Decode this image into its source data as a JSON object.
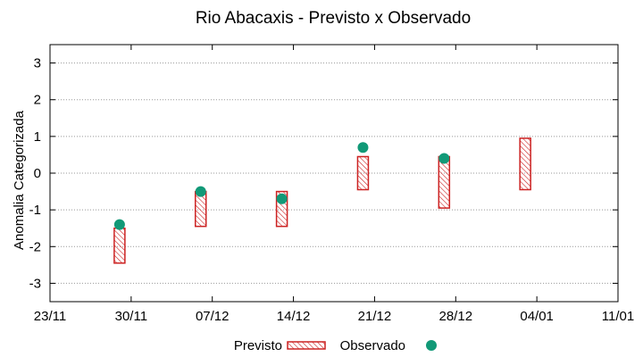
{
  "chart_data": {
    "type": "range-bar-scatter",
    "title": "Rio Abacaxis - Previsto x Observado",
    "xlabel": "",
    "ylabel": "Anomalia Categorizada",
    "x_tick_labels": [
      "23/11",
      "30/11",
      "07/12",
      "14/12",
      "21/12",
      "28/12",
      "04/01",
      "11/01"
    ],
    "x_ticks": [
      "2023-11-23",
      "2023-11-30",
      "2023-12-07",
      "2023-12-14",
      "2023-12-21",
      "2023-12-28",
      "2024-01-04",
      "2024-01-11"
    ],
    "xlim": [
      "2023-11-23",
      "2024-01-11"
    ],
    "y_ticks": [
      -3,
      -2,
      -1,
      0,
      1,
      2,
      3
    ],
    "ylim": [
      -3.5,
      3.5
    ],
    "grid": "horizontal dotted",
    "legend_position": "bottom",
    "series": [
      {
        "name": "Previsto",
        "kind": "range-bar",
        "color": "#cc2222",
        "points": [
          {
            "x": "2023-11-29",
            "low": -2.45,
            "high": -1.5
          },
          {
            "x": "2023-12-06",
            "low": -1.45,
            "high": -0.5
          },
          {
            "x": "2023-12-13",
            "low": -1.45,
            "high": -0.5
          },
          {
            "x": "2023-12-20",
            "low": -0.45,
            "high": 0.45
          },
          {
            "x": "2023-12-27",
            "low": -0.95,
            "high": 0.45
          },
          {
            "x": "2024-01-03",
            "low": -0.45,
            "high": 0.95
          }
        ]
      },
      {
        "name": "Observado",
        "kind": "scatter",
        "color": "#119977",
        "points": [
          {
            "x": "2023-11-29",
            "y": -1.4
          },
          {
            "x": "2023-12-06",
            "y": -0.5
          },
          {
            "x": "2023-12-13",
            "y": -0.7
          },
          {
            "x": "2023-12-20",
            "y": 0.7
          },
          {
            "x": "2023-12-27",
            "y": 0.4
          }
        ]
      }
    ]
  }
}
